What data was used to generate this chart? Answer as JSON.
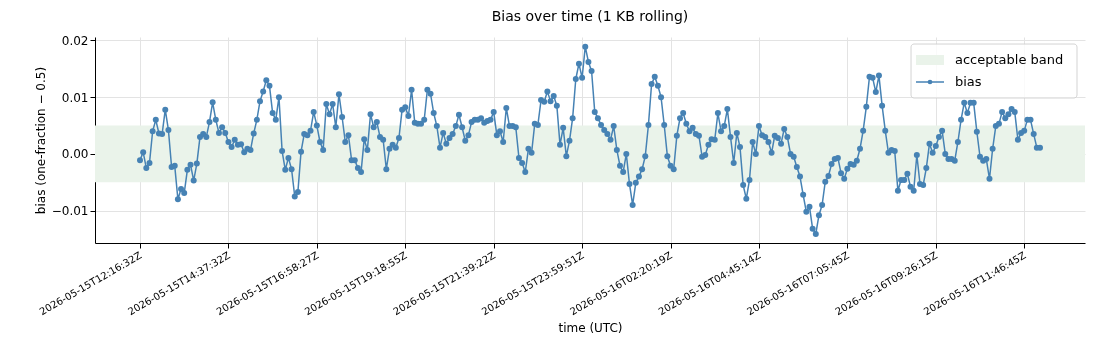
{
  "chart_data": {
    "type": "line",
    "title": "Bias over time (1 KB rolling)",
    "xlabel": "time (UTC)",
    "ylabel": "bias (one-fraction − 0.5)",
    "categories": [
      "2026-05-15T12:16:32Z",
      null,
      null,
      null,
      null,
      null,
      null,
      null,
      null,
      null,
      null,
      null,
      null,
      null,
      null,
      null,
      null,
      null,
      null,
      null,
      null,
      null,
      null,
      null,
      null,
      null,
      null,
      null,
      "2026-05-15T14:37:32Z",
      null,
      null,
      null,
      null,
      null,
      null,
      null,
      null,
      null,
      null,
      null,
      null,
      null,
      null,
      null,
      null,
      null,
      null,
      null,
      null,
      null,
      null,
      null,
      null,
      null,
      null,
      null,
      "2026-05-15T16:58:27Z",
      null,
      null,
      null,
      null,
      null,
      null,
      null,
      null,
      null,
      null,
      null,
      null,
      null,
      null,
      null,
      null,
      null,
      null,
      null,
      null,
      null,
      null,
      null,
      null,
      null,
      null,
      null,
      "2026-05-15T19:18:55Z",
      null,
      null,
      null,
      null,
      null,
      null,
      null,
      null,
      null,
      null,
      null,
      null,
      null,
      null,
      null,
      null,
      null,
      null,
      null,
      null,
      null,
      null,
      null,
      null,
      null,
      null,
      null,
      "2026-05-15T21:39:22Z",
      null,
      null,
      null,
      null,
      null,
      null,
      null,
      null,
      null,
      null,
      null,
      null,
      null,
      null,
      null,
      null,
      null,
      null,
      null,
      null,
      null,
      null,
      null,
      null,
      null,
      null,
      null,
      "2026-05-15T23:59:51Z",
      null,
      null,
      null,
      null,
      null,
      null,
      null,
      null,
      null,
      null,
      null,
      null,
      null,
      null,
      null,
      null,
      null,
      null,
      null,
      null,
      null,
      null,
      null,
      null,
      null,
      null,
      null,
      "2026-05-16T02:20:19Z",
      null,
      null,
      null,
      null,
      null,
      null,
      null,
      null,
      null,
      null,
      null,
      null,
      null,
      null,
      null,
      null,
      null,
      null,
      null,
      null,
      null,
      null,
      null,
      null,
      null,
      null,
      null,
      "2026-05-16T04:45:14Z",
      null,
      null,
      null,
      null,
      null,
      null,
      null,
      null,
      null,
      null,
      null,
      null,
      null,
      null,
      null,
      null,
      null,
      null,
      null,
      null,
      null,
      null,
      null,
      null,
      null,
      null,
      null,
      "2026-05-16T07:05:45Z",
      null,
      null,
      null,
      null,
      null,
      null,
      null,
      null,
      null,
      null,
      null,
      null,
      null,
      null,
      null,
      null,
      null,
      null,
      null,
      null,
      null,
      null,
      null,
      null,
      null,
      null,
      null,
      "2026-05-16T09:26:15Z",
      null,
      null,
      null,
      null,
      null,
      null,
      null,
      null,
      null,
      null,
      null,
      null,
      null,
      null,
      null,
      null,
      null,
      null,
      null,
      null,
      null,
      null,
      null,
      null,
      null,
      null,
      null,
      "2026-05-16T11:46:45Z",
      null,
      null,
      null,
      null,
      null
    ],
    "ylim": [
      -0.0157,
      0.0206
    ],
    "yticks": [
      {
        "value": -0.01,
        "label": "−0.01"
      },
      {
        "value": 0,
        "label": "0.00"
      },
      {
        "value": 0.01,
        "label": "0.01"
      },
      {
        "value": 0.02,
        "label": "0.02"
      }
    ],
    "grid": true,
    "legend": "top right",
    "marker": "circle",
    "line_style": "solid",
    "bands": [
      {
        "axis": "y",
        "from": -0.005,
        "to": 0.005,
        "label": "acceptable band",
        "color": "#eaf3ea"
      }
    ],
    "series": [
      {
        "name": "bias",
        "color": "#4682b4",
        "values": [
          -0.0011,
          0.0003,
          -0.0025,
          -0.0016,
          0.004,
          0.006,
          0.0036,
          0.0035,
          0.0078,
          0.0042,
          -0.0023,
          -0.0021,
          -0.008,
          -0.0062,
          -0.0069,
          -0.0028,
          -0.0019,
          -0.0047,
          -0.0017,
          0.003,
          0.0035,
          0.003,
          0.0056,
          0.0091,
          0.006,
          0.0037,
          0.0047,
          0.0037,
          0.0021,
          0.0012,
          0.0025,
          0.0016,
          0.0017,
          0.0003,
          0.0009,
          0.0007,
          0.0036,
          0.006,
          0.0093,
          0.011,
          0.013,
          0.012,
          0.0072,
          0.006,
          0.01,
          0.0005,
          -0.0028,
          -0.0007,
          -0.0027,
          -0.0075,
          -0.0067,
          0.0004,
          0.0035,
          0.0033,
          0.0041,
          0.0074,
          0.005,
          0.0021,
          0.0007,
          0.0088,
          0.007,
          0.0088,
          0.0047,
          0.0105,
          0.0065,
          0.0021,
          0.0033,
          -0.0011,
          -0.0011,
          -0.0025,
          -0.0032,
          0.0026,
          0.0007,
          0.007,
          0.0047,
          0.0056,
          0.003,
          0.0025,
          -0.0027,
          0.0009,
          0.0016,
          0.0011,
          0.0028,
          0.0078,
          0.0082,
          0.0067,
          0.0113,
          0.0055,
          0.0053,
          0.0053,
          0.006,
          0.0113,
          0.0106,
          0.0072,
          0.0049,
          0.0011,
          0.0037,
          0.0018,
          0.0028,
          0.0035,
          0.0049,
          0.0069,
          0.0047,
          0.0023,
          0.0033,
          0.0056,
          0.006,
          0.006,
          0.0063,
          0.0055,
          0.0058,
          0.006,
          0.0074,
          0.0033,
          0.004,
          0.0021,
          0.0081,
          0.0049,
          0.0049,
          0.0047,
          -0.0007,
          -0.0016,
          -0.0032,
          0.0009,
          0.0002,
          0.0053,
          0.0051,
          0.0095,
          0.0092,
          0.011,
          0.0093,
          0.0102,
          0.0085,
          0.0016,
          0.0046,
          -0.0004,
          0.0023,
          0.0063,
          0.0132,
          0.0159,
          0.0134,
          0.0189,
          0.0162,
          0.0146,
          0.0074,
          0.0063,
          0.0051,
          0.0042,
          0.0035,
          0.0025,
          0.0049,
          0.0007,
          -0.0021,
          -0.0032,
          0.0,
          -0.0053,
          -0.009,
          -0.0051,
          -0.004,
          -0.0027,
          -0.0004,
          0.0051,
          0.0123,
          0.0136,
          0.012,
          0.01,
          0.0051,
          -0.0004,
          -0.0021,
          -0.0027,
          0.0032,
          0.0063,
          0.0072,
          0.0053,
          0.004,
          0.0046,
          0.0035,
          0.0032,
          -0.0005,
          -0.0002,
          0.0016,
          0.0026,
          0.0025,
          0.0072,
          0.004,
          0.0049,
          0.0079,
          0.003,
          -0.0016,
          0.0037,
          0.0012,
          -0.0055,
          -0.0079,
          -0.0046,
          0.0021,
          0.0,
          0.0049,
          0.0033,
          0.003,
          0.0021,
          0.0002,
          0.0032,
          0.0028,
          0.0018,
          0.0044,
          0.003,
          0.0,
          -0.0005,
          -0.0023,
          -0.004,
          -0.0072,
          -0.0102,
          -0.0093,
          -0.0132,
          -0.0141,
          -0.0108,
          -0.009,
          -0.0049,
          -0.0039,
          -0.0018,
          -0.0009,
          -0.0007,
          -0.0034,
          -0.0044,
          -0.0026,
          -0.0018,
          -0.0019,
          -0.0012,
          0.0009,
          0.0041,
          0.0083,
          0.0136,
          0.0134,
          0.0109,
          0.0138,
          0.0085,
          0.0041,
          0.0002,
          0.0007,
          0.0005,
          -0.0065,
          -0.0046,
          -0.0046,
          -0.0035,
          -0.0058,
          -0.0065,
          -0.0002,
          -0.0053,
          -0.0055,
          -0.0025,
          0.0018,
          0.0002,
          0.0014,
          0.003,
          0.0041,
          0.0,
          -0.0009,
          -0.0009,
          -0.0012,
          0.0021,
          0.006,
          0.009,
          0.0072,
          0.009,
          0.009,
          0.0039,
          -0.0005,
          -0.0012,
          -0.0009,
          -0.0044,
          0.0009,
          0.0049,
          0.0053,
          0.0074,
          0.0063,
          0.007,
          0.0079,
          0.0074,
          0.0025,
          0.0037,
          0.0041,
          0.006,
          0.006,
          0.0035,
          0.0011,
          0.0011
        ]
      }
    ]
  }
}
